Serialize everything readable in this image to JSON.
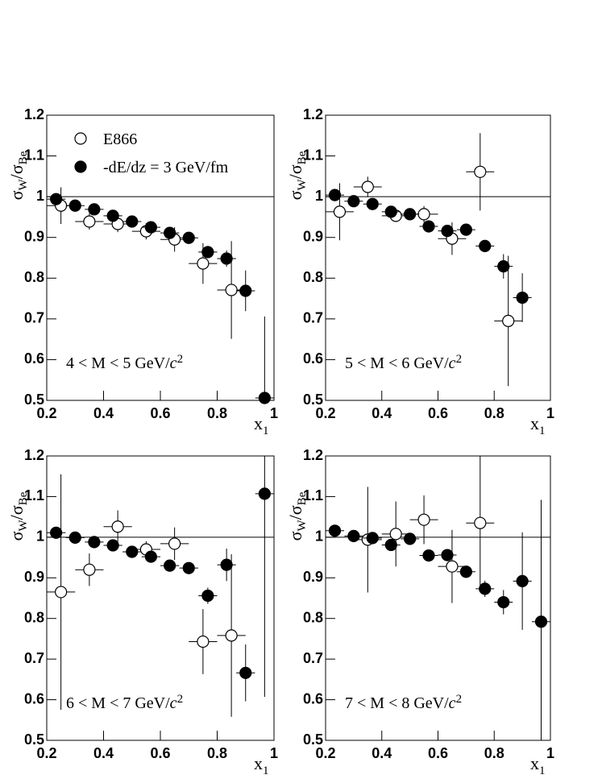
{
  "chart_data": [
    {
      "type": "scatter",
      "xlim": [
        0.2,
        1.0
      ],
      "ylim": [
        0.5,
        1.2
      ],
      "xticks": [
        0.2,
        0.4,
        0.6,
        0.8,
        1
      ],
      "yticks": [
        0.5,
        0.6,
        0.7,
        0.8,
        0.9,
        1,
        1.1,
        1.2
      ],
      "y_label": [
        "σ",
        "W",
        "/σ",
        "Be"
      ],
      "x_label": [
        "x",
        "1"
      ],
      "annotation": [
        "4 < M < 5 GeV/",
        "c",
        "2"
      ],
      "hline": 1,
      "legend": "upper left",
      "series": [
        {
          "name": "E866",
          "marker": "open",
          "color": "#000000",
          "xerror": 0.05,
          "x": [
            0.25,
            0.35,
            0.45,
            0.55,
            0.65,
            0.75,
            0.85
          ],
          "values": [
            0.978,
            0.939,
            0.933,
            0.915,
            0.895,
            0.836,
            0.771
          ],
          "errors": [
            0.045,
            0.02,
            0.02,
            0.02,
            0.03,
            0.05,
            0.12
          ]
        },
        {
          "name": "-dE/dz = 3 GeV/fm",
          "marker": "filled",
          "color": "#000000",
          "xerror": 0.033,
          "x": [
            0.233,
            0.3,
            0.367,
            0.433,
            0.5,
            0.567,
            0.633,
            0.7,
            0.767,
            0.833,
            0.9,
            0.967
          ],
          "values": [
            0.994,
            0.978,
            0.969,
            0.953,
            0.939,
            0.925,
            0.911,
            0.899,
            0.864,
            0.848,
            0.769,
            0.506
          ],
          "errors": [
            0.01,
            0.008,
            0.008,
            0.008,
            0.008,
            0.008,
            0.01,
            0.01,
            0.015,
            0.02,
            0.05,
            0.2
          ]
        }
      ]
    },
    {
      "type": "scatter",
      "xlim": [
        0.2,
        1.0
      ],
      "ylim": [
        0.5,
        1.2
      ],
      "xticks": [
        0.2,
        0.4,
        0.6,
        0.8,
        1
      ],
      "yticks": [
        0.5,
        0.6,
        0.7,
        0.8,
        0.9,
        1,
        1.1,
        1.2
      ],
      "y_label": [
        "σ",
        "W",
        "/σ",
        "Be"
      ],
      "x_label": [
        "x",
        "1"
      ],
      "annotation": [
        "5 < M < 6 GeV/",
        "c",
        "2"
      ],
      "hline": 1,
      "series": [
        {
          "marker": "open",
          "color": "#000000",
          "xerror": 0.05,
          "x": [
            0.25,
            0.35,
            0.45,
            0.55,
            0.65,
            0.75,
            0.85
          ],
          "values": [
            0.963,
            1.024,
            0.953,
            0.957,
            0.897,
            1.061,
            0.695
          ],
          "errors": [
            0.07,
            0.025,
            0.015,
            0.02,
            0.04,
            0.095,
            0.16
          ]
        },
        {
          "marker": "filled",
          "color": "#000000",
          "xerror": 0.033,
          "x": [
            0.233,
            0.3,
            0.367,
            0.433,
            0.5,
            0.567,
            0.633,
            0.7,
            0.767,
            0.833,
            0.9
          ],
          "values": [
            1.004,
            0.989,
            0.982,
            0.963,
            0.957,
            0.927,
            0.916,
            0.919,
            0.879,
            0.829,
            0.752
          ],
          "errors": [
            0.01,
            0.008,
            0.008,
            0.008,
            0.008,
            0.008,
            0.01,
            0.01,
            0.015,
            0.03,
            0.06
          ]
        }
      ]
    },
    {
      "type": "scatter",
      "xlim": [
        0.2,
        1.0
      ],
      "ylim": [
        0.5,
        1.2
      ],
      "xticks": [
        0.2,
        0.4,
        0.6,
        0.8,
        1
      ],
      "yticks": [
        0.5,
        0.6,
        0.7,
        0.8,
        0.9,
        1,
        1.1,
        1.2
      ],
      "y_label": [
        "σ",
        "W",
        "/σ",
        "Be"
      ],
      "x_label": [
        "x",
        "1"
      ],
      "annotation": [
        "6 < M < 7 GeV/",
        "c",
        "2"
      ],
      "hline": 1,
      "series": [
        {
          "marker": "open",
          "color": "#000000",
          "xerror": 0.05,
          "x": [
            0.25,
            0.35,
            0.45,
            0.55,
            0.65,
            0.75,
            0.85
          ],
          "values": [
            0.865,
            0.92,
            1.026,
            0.97,
            0.984,
            0.743,
            0.758
          ],
          "errors": [
            0.29,
            0.04,
            0.04,
            0.02,
            0.04,
            0.08,
            0.2
          ]
        },
        {
          "marker": "filled",
          "color": "#000000",
          "xerror": 0.033,
          "x": [
            0.233,
            0.3,
            0.367,
            0.433,
            0.5,
            0.567,
            0.633,
            0.7,
            0.767,
            0.833,
            0.9,
            0.967
          ],
          "values": [
            1.011,
            0.999,
            0.988,
            0.98,
            0.964,
            0.952,
            0.93,
            0.924,
            0.856,
            0.932,
            0.666,
            1.107
          ],
          "errors": [
            0.01,
            0.008,
            0.008,
            0.008,
            0.008,
            0.008,
            0.01,
            0.01,
            0.02,
            0.04,
            0.07,
            0.5
          ]
        }
      ]
    },
    {
      "type": "scatter",
      "xlim": [
        0.2,
        1.0
      ],
      "ylim": [
        0.5,
        1.2
      ],
      "xticks": [
        0.2,
        0.4,
        0.6,
        0.8,
        1
      ],
      "yticks": [
        0.5,
        0.6,
        0.7,
        0.8,
        0.9,
        1,
        1.1,
        1.2
      ],
      "y_label": [
        "σ",
        "W",
        "/σ",
        "Be"
      ],
      "x_label": [
        "x",
        "1"
      ],
      "annotation": [
        "7 < M < 8 GeV/",
        "c",
        "2"
      ],
      "hline": 1,
      "series": [
        {
          "marker": "open",
          "color": "#000000",
          "xerror": 0.05,
          "x": [
            0.35,
            0.45,
            0.55,
            0.65,
            0.75
          ],
          "values": [
            0.994,
            1.008,
            1.043,
            0.928,
            1.035
          ],
          "errors": [
            0.13,
            0.08,
            0.06,
            0.09,
            0.17
          ]
        },
        {
          "marker": "filled",
          "color": "#000000",
          "xerror": 0.033,
          "x": [
            0.233,
            0.3,
            0.367,
            0.433,
            0.5,
            0.567,
            0.633,
            0.7,
            0.767,
            0.833,
            0.9,
            0.967
          ],
          "values": [
            1.016,
            1.003,
            0.998,
            0.981,
            0.996,
            0.955,
            0.956,
            0.915,
            0.873,
            0.84,
            0.892,
            0.792
          ],
          "errors": [
            0.008,
            0.008,
            0.008,
            0.01,
            0.01,
            0.01,
            0.012,
            0.015,
            0.02,
            0.03,
            0.12,
            0.3
          ]
        }
      ]
    }
  ]
}
